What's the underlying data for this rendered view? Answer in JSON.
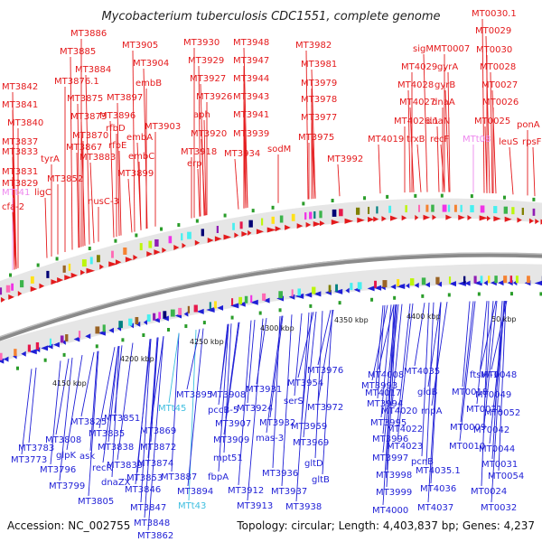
{
  "title": "Mycobacterium tuberculosis CDC1551, complete genome",
  "footer": {
    "accession": "Accession: NC_002755",
    "summary": "Topology: circular; Length: 4,403,837 bp; Genes: 4,237"
  },
  "colors": {
    "forward": "#e41a1c",
    "reverse": "#1f1fd6",
    "rna": "#ee88ee",
    "trna_reverse": "#3fbfe0",
    "backbone": "#777777"
  },
  "kbp_ticks": [
    "4150 kbp",
    "4200 kbp",
    "4250 kbp",
    "4300 kbp",
    "4350 kbp",
    "4400 kbp",
    "50 kbp"
  ],
  "top_labels": [
    "MT3886",
    "MT3885",
    "MT3884",
    "MT3876.1",
    "MT3875",
    "MT3873",
    "MT3870",
    "MT3867",
    "MT3883",
    "MT3852",
    "MT3905",
    "MT3904",
    "embB",
    "MT3897",
    "MT3896",
    "rfbD",
    "rfbE",
    "embA",
    "MT3903",
    "embC",
    "MT3899",
    "nusC-3",
    "MT3842",
    "MT3841",
    "MT3840",
    "MT3837",
    "MT3833",
    "tyrA",
    "MT3831",
    "MT3829",
    "MTt41",
    "ligC",
    "cfa-2",
    "MT3930",
    "MT3929",
    "MT3927",
    "MT3926",
    "aph",
    "MT3920",
    "MT3918",
    "erp",
    "MT3948",
    "MT3947",
    "MT3944",
    "MT3943",
    "MT3941",
    "MT3939",
    "MT3934",
    "sodM",
    "MT3982",
    "MT3981",
    "MT3979",
    "MT3978",
    "MT3977",
    "MT3975",
    "MT3992",
    "sigM",
    "MT4029",
    "MT4028",
    "MT4027",
    "MT4026.1",
    "MT4019",
    "trxB",
    "MT0007",
    "gyrA",
    "gyrB",
    "dnaA",
    "dnaN",
    "recF",
    "MTt08",
    "MT0030.1",
    "MT0029",
    "MT0030",
    "MT0028",
    "MT0027",
    "MT0026",
    "MT0025",
    "leuS",
    "ponA",
    "rpsF"
  ],
  "bottom_labels": [
    "MT3783",
    "MT3773",
    "MT3808",
    "glpK",
    "ask",
    "MT3796",
    "MT3799",
    "recR",
    "dnaZX",
    "MT3805",
    "MT3825",
    "MT3835",
    "MT3851",
    "MT3838",
    "MT3869",
    "MT3839",
    "MT3872",
    "MT3874",
    "MT3853",
    "MT3846",
    "MT3887",
    "MT3847",
    "MT3848",
    "MT3862",
    "MTt43",
    "MTt45",
    "MT3895",
    "MT3894",
    "MT3908",
    "pccB-5",
    "MT3907",
    "MT3909",
    "mpt51",
    "fbpA",
    "MT3912",
    "MT3913",
    "MT3924",
    "MT3931",
    "MT3932",
    "mas-3",
    "MT3936",
    "MT3937",
    "MT3938",
    "MT3954",
    "serS",
    "MT3959",
    "MT3969",
    "MT3972",
    "gltD",
    "gltB",
    "MT3976",
    "MT3993",
    "MT3994",
    "MT3995",
    "MT3996",
    "MT3997",
    "MT3998",
    "MT3999",
    "MT4000",
    "MT4008",
    "MT4017",
    "MT4020",
    "MT4022",
    "MT4023",
    "pcnB",
    "MT4035",
    "gidB",
    "rnpA",
    "MT4035.1",
    "MT4036",
    "MT4037",
    "ftsW-1",
    "MT0018",
    "MT0021",
    "MT0009",
    "MT0010",
    "MT0024",
    "MT0031",
    "MT0032",
    "MT0048",
    "MT0049",
    "MT0052",
    "MT0042",
    "MT0044",
    "MT0054"
  ]
}
